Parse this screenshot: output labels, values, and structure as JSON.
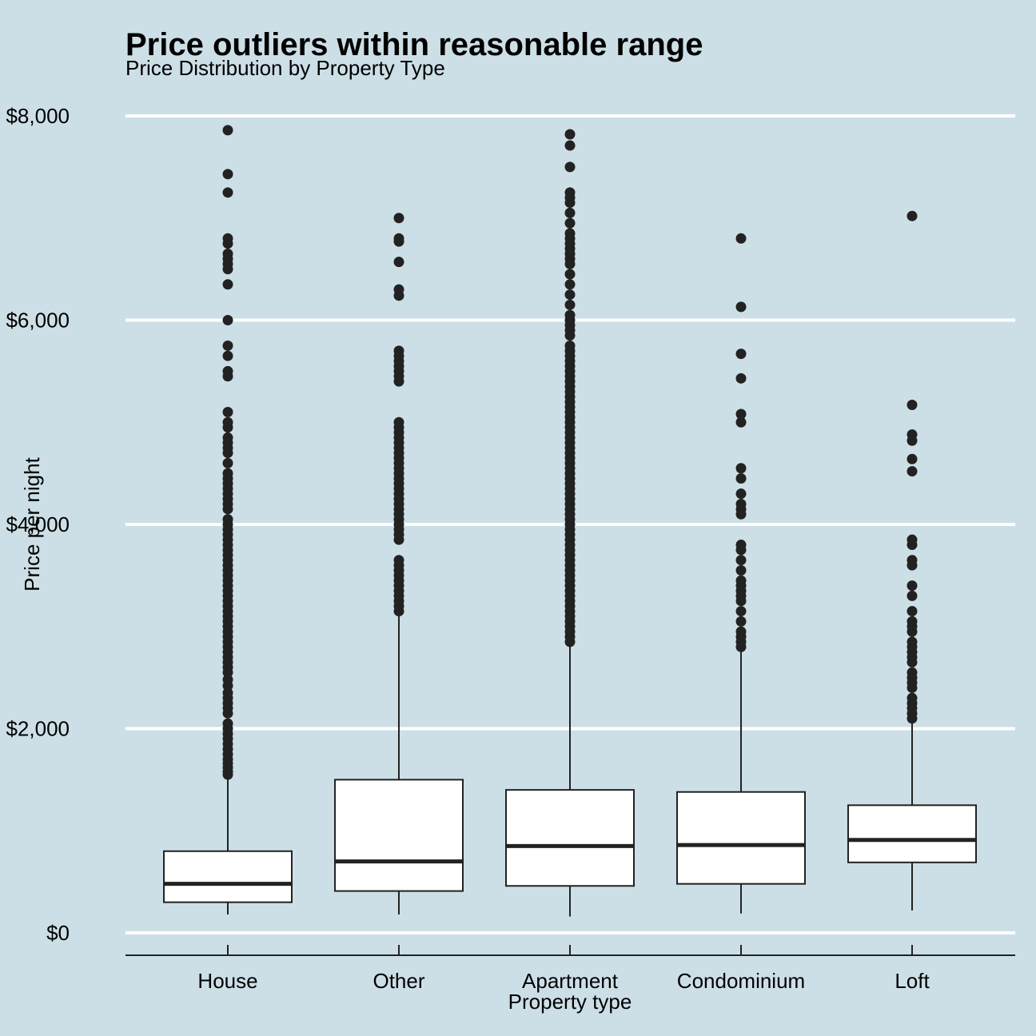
{
  "chart_data": {
    "type": "boxplot",
    "title": "Price outliers within reasonable range",
    "subtitle": "Price Distribution by Property Type",
    "xlabel": "Property type",
    "ylabel": "Price per night",
    "ylim": [
      0,
      8000
    ],
    "y_ticks": [
      0,
      2000,
      4000,
      6000,
      8000
    ],
    "y_tick_labels": [
      "$0",
      "$2,000",
      "$4,000",
      "$6,000",
      "$8,000"
    ],
    "grid": "horizontal-major",
    "colors": {
      "background": "#cddfe6",
      "grid": "#ffffff",
      "box_fill": "#ffffff",
      "box_stroke": "#222222",
      "outlier": "#222222"
    },
    "categories": [
      "House",
      "Other",
      "Apartment",
      "Condominium",
      "Loft"
    ],
    "boxes": [
      {
        "category": "House",
        "whisker_low": 180,
        "q1": 300,
        "median": 480,
        "q3": 800,
        "whisker_high": 1550,
        "outliers": [
          1550,
          1580,
          1620,
          1660,
          1700,
          1750,
          1800,
          1850,
          1900,
          1950,
          2000,
          2050,
          2150,
          2200,
          2250,
          2300,
          2350,
          2420,
          2480,
          2550,
          2600,
          2650,
          2700,
          2750,
          2800,
          2850,
          2900,
          2950,
          3000,
          3050,
          3100,
          3150,
          3200,
          3250,
          3300,
          3350,
          3400,
          3450,
          3500,
          3550,
          3600,
          3650,
          3700,
          3750,
          3800,
          3850,
          3900,
          3950,
          4000,
          4050,
          4150,
          4200,
          4250,
          4300,
          4350,
          4400,
          4450,
          4500,
          4600,
          4700,
          4750,
          4800,
          4850,
          4950,
          5000,
          5100,
          5450,
          5500,
          5650,
          5750,
          6000,
          6350,
          6500,
          6550,
          6600,
          6650,
          6750,
          6800,
          7250,
          7430,
          7860
        ]
      },
      {
        "category": "Other",
        "whisker_low": 180,
        "q1": 410,
        "median": 700,
        "q3": 1500,
        "whisker_high": 3150,
        "outliers": [
          3150,
          3200,
          3250,
          3300,
          3350,
          3400,
          3450,
          3500,
          3550,
          3600,
          3650,
          3850,
          3900,
          3950,
          4000,
          4050,
          4100,
          4150,
          4200,
          4250,
          4300,
          4350,
          4400,
          4450,
          4500,
          4550,
          4600,
          4650,
          4700,
          4750,
          4800,
          4850,
          4900,
          4950,
          5000,
          5400,
          5450,
          5500,
          5550,
          5600,
          5650,
          5700,
          6240,
          6300,
          6570,
          6770,
          6800,
          7000
        ]
      },
      {
        "category": "Apartment",
        "whisker_low": 160,
        "q1": 460,
        "median": 850,
        "q3": 1400,
        "whisker_high": 2850,
        "outliers": [
          2850,
          2900,
          2950,
          3000,
          3050,
          3100,
          3150,
          3200,
          3250,
          3300,
          3350,
          3400,
          3450,
          3500,
          3550,
          3600,
          3650,
          3700,
          3750,
          3800,
          3850,
          3900,
          3950,
          4000,
          4050,
          4100,
          4150,
          4200,
          4250,
          4300,
          4350,
          4400,
          4450,
          4500,
          4550,
          4600,
          4650,
          4700,
          4750,
          4800,
          4850,
          4900,
          4950,
          5000,
          5050,
          5100,
          5150,
          5200,
          5250,
          5300,
          5350,
          5400,
          5450,
          5500,
          5550,
          5600,
          5650,
          5700,
          5750,
          5850,
          5900,
          5950,
          6000,
          6050,
          6150,
          6250,
          6350,
          6450,
          6550,
          6600,
          6650,
          6700,
          6750,
          6800,
          6850,
          6950,
          7050,
          7150,
          7200,
          7250,
          7500,
          7710,
          7820
        ]
      },
      {
        "category": "Condominium",
        "whisker_low": 190,
        "q1": 480,
        "median": 860,
        "q3": 1380,
        "whisker_high": 2800,
        "outliers": [
          2800,
          2850,
          2900,
          2950,
          3050,
          3150,
          3250,
          3300,
          3350,
          3400,
          3450,
          3550,
          3650,
          3750,
          3800,
          4100,
          4150,
          4200,
          4300,
          4450,
          4550,
          5000,
          5080,
          5430,
          5670,
          6130,
          6800
        ]
      },
      {
        "category": "Loft",
        "whisker_low": 220,
        "q1": 690,
        "median": 910,
        "q3": 1250,
        "whisker_high": 2100,
        "outliers": [
          2100,
          2150,
          2200,
          2250,
          2300,
          2400,
          2450,
          2500,
          2550,
          2650,
          2700,
          2750,
          2800,
          2850,
          2950,
          3000,
          3050,
          3150,
          3300,
          3400,
          3600,
          3650,
          3800,
          3850,
          4520,
          4640,
          4820,
          4880,
          5170,
          7020
        ]
      }
    ]
  }
}
